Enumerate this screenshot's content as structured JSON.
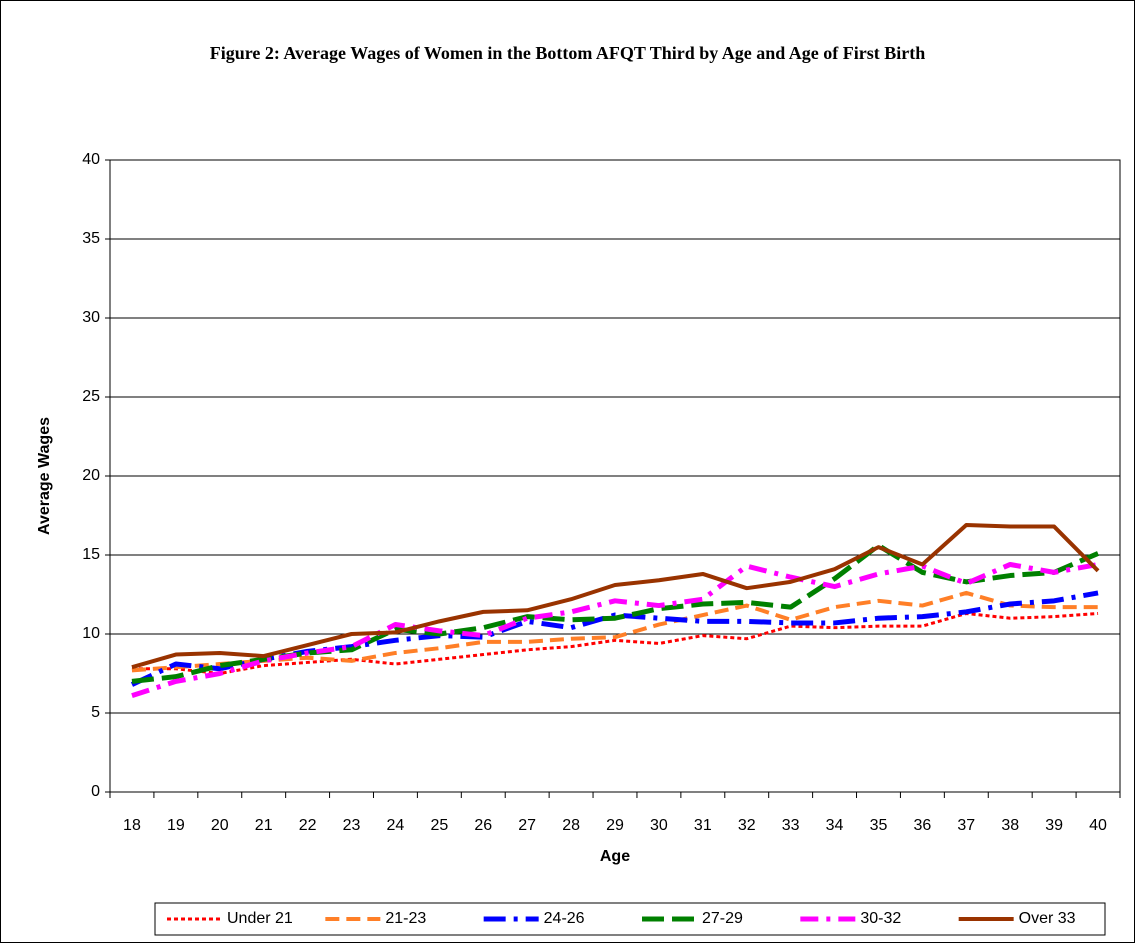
{
  "chart_data": {
    "type": "line",
    "title": "Figure 2: Average Wages of Women in the Bottom AFQT Third by Age and Age of First Birth",
    "x_label": "Age",
    "y_label": "Average Wages",
    "categories": [
      "18",
      "19",
      "20",
      "21",
      "22",
      "23",
      "24",
      "25",
      "26",
      "27",
      "28",
      "29",
      "30",
      "31",
      "32",
      "33",
      "34",
      "35",
      "36",
      "37",
      "38",
      "39",
      "40"
    ],
    "ylim": [
      0,
      40
    ],
    "yticks": [
      0,
      5,
      10,
      15,
      20,
      25,
      30,
      35,
      40
    ],
    "grid": true,
    "legend": "bottom",
    "series": [
      {
        "name": "Under 21",
        "color": "#ff0000",
        "values": [
          7.8,
          7.8,
          7.5,
          8.0,
          8.2,
          8.4,
          8.1,
          8.4,
          8.7,
          9.0,
          9.2,
          9.6,
          9.4,
          9.9,
          9.7,
          10.5,
          10.4,
          10.5,
          10.5,
          11.3,
          11.0,
          11.1,
          11.3
        ]
      },
      {
        "name": "21-23",
        "color": "#ff7f27",
        "values": [
          7.7,
          7.9,
          8.1,
          8.3,
          8.5,
          8.3,
          8.8,
          9.1,
          9.5,
          9.5,
          9.7,
          9.8,
          10.6,
          11.2,
          11.8,
          10.9,
          11.7,
          12.1,
          11.8,
          12.6,
          11.8,
          11.7,
          11.7
        ]
      },
      {
        "name": "24-26",
        "color": "#0000ff",
        "values": [
          6.8,
          8.1,
          7.8,
          8.4,
          8.9,
          9.2,
          9.6,
          9.9,
          9.8,
          10.8,
          10.4,
          11.2,
          11.0,
          10.8,
          10.8,
          10.7,
          10.7,
          11.0,
          11.1,
          11.4,
          11.9,
          12.1,
          12.6
        ]
      },
      {
        "name": "27-29",
        "color": "#008000",
        "values": [
          7.0,
          7.3,
          8.0,
          8.4,
          8.8,
          9.0,
          10.3,
          10.0,
          10.4,
          11.1,
          10.9,
          11.0,
          11.6,
          11.9,
          12.0,
          11.7,
          13.5,
          15.6,
          13.9,
          13.3,
          13.7,
          13.9,
          15.1
        ]
      },
      {
        "name": "30-32",
        "color": "#ff00ff",
        "values": [
          6.1,
          7.0,
          7.5,
          8.3,
          8.8,
          9.2,
          10.6,
          10.2,
          9.9,
          11.0,
          11.4,
          12.1,
          11.8,
          12.2,
          14.3,
          13.6,
          13.0,
          13.8,
          14.3,
          13.2,
          14.4,
          13.9,
          14.4
        ]
      },
      {
        "name": "Over 33",
        "color": "#993300",
        "values": [
          7.9,
          8.7,
          8.8,
          8.6,
          9.3,
          10.0,
          10.1,
          10.8,
          11.4,
          11.5,
          12.2,
          13.1,
          13.4,
          13.8,
          12.9,
          13.3,
          14.1,
          15.5,
          14.4,
          16.9,
          16.8,
          16.8,
          14.0
        ]
      }
    ]
  }
}
